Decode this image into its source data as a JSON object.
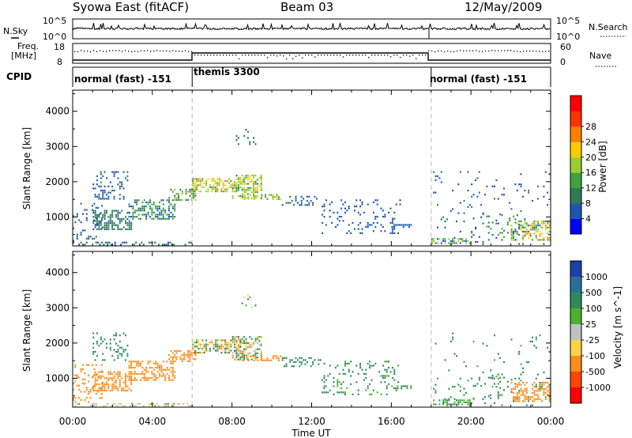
{
  "header": {
    "title": "Syowa East (fitACF)",
    "beam": "Beam 03",
    "date": "12/May/2009"
  },
  "noise_panel": {
    "left_label": "N.Sky",
    "left_ticks": [
      "10^5",
      "10^0"
    ],
    "right_label": "N.Search",
    "right_ticks": [
      "10^5",
      "10^0"
    ]
  },
  "freq_panel": {
    "left_label_1": "Freq.",
    "left_label_2": "[MHz]",
    "left_ticks": [
      "18",
      "8"
    ],
    "right_label": "Nave",
    "right_ticks": [
      "60",
      "0"
    ]
  },
  "cpid": {
    "label": "CPID",
    "modes": [
      {
        "name": "normal (fast) -151",
        "start_h": 0,
        "end_h": 6
      },
      {
        "name": "themis 3300",
        "start_h": 6,
        "end_h": 18
      },
      {
        "name": "normal (fast) -151",
        "start_h": 18,
        "end_h": 24
      }
    ]
  },
  "colors": {
    "power": [
      "#0000ff",
      "#1e56b4",
      "#2e7b55",
      "#3fa33f",
      "#9acd32",
      "#ffcc00",
      "#ff8000",
      "#ff3300",
      "#ff0000"
    ],
    "velocity": [
      "#ff0000",
      "#ff4500",
      "#ff8c1a",
      "#ffd24d",
      "#c0c0c0",
      "#4caf2c",
      "#2e8b57",
      "#2a6f9b",
      "#1f3fa8"
    ]
  },
  "chart_data": [
    {
      "type": "heatmap",
      "name": "power",
      "ylabel": "Slant Range [km]",
      "yticks": [
        "1000",
        "2000",
        "3000",
        "4000"
      ],
      "ylim": [
        180,
        4600
      ],
      "colorbar_label": "Power [dB]",
      "colorbar_ticks": [
        "4",
        "8",
        "12",
        "16",
        "20",
        "24",
        "28"
      ],
      "colorbar_range": [
        0,
        32
      ],
      "clusters": [
        {
          "t": [
            0.0,
            1.5
          ],
          "r": [
            300,
            1400
          ],
          "v": [
            4,
            10
          ],
          "density": 0.2
        },
        {
          "t": [
            1.0,
            3.0
          ],
          "r": [
            600,
            1200
          ],
          "v": [
            6,
            12
          ],
          "density": 0.5
        },
        {
          "t": [
            1.0,
            2.8
          ],
          "r": [
            1500,
            2300
          ],
          "v": [
            4,
            10
          ],
          "density": 0.25
        },
        {
          "t": [
            2.8,
            5.2
          ],
          "r": [
            900,
            1500
          ],
          "v": [
            6,
            16
          ],
          "density": 0.45
        },
        {
          "t": [
            4.8,
            6.2
          ],
          "r": [
            1450,
            1800
          ],
          "v": [
            8,
            20
          ],
          "density": 0.5
        },
        {
          "t": [
            6.0,
            8.5
          ],
          "r": [
            1700,
            2100
          ],
          "v": [
            14,
            26
          ],
          "density": 0.55
        },
        {
          "t": [
            8.0,
            9.5
          ],
          "r": [
            1500,
            2200
          ],
          "v": [
            10,
            24
          ],
          "density": 0.5
        },
        {
          "t": [
            8.5,
            10.5
          ],
          "r": [
            1450,
            1650
          ],
          "v": [
            12,
            22
          ],
          "density": 0.45
        },
        {
          "t": [
            10.5,
            12.5
          ],
          "r": [
            1300,
            1600
          ],
          "v": [
            4,
            10
          ],
          "density": 0.3
        },
        {
          "t": [
            12.5,
            16.5
          ],
          "r": [
            500,
            1500
          ],
          "v": [
            4,
            8
          ],
          "density": 0.15
        },
        {
          "t": [
            16.0,
            17.0
          ],
          "r": [
            700,
            800
          ],
          "v": [
            4,
            8
          ],
          "density": 0.6
        },
        {
          "t": [
            8.0,
            9.2
          ],
          "r": [
            2900,
            3500
          ],
          "v": [
            4,
            12
          ],
          "density": 0.1
        },
        {
          "t": [
            0.0,
            6.0
          ],
          "r": [
            200,
            300
          ],
          "v": [
            4,
            12
          ],
          "density": 0.3
        },
        {
          "t": [
            18.0,
            20.0
          ],
          "r": [
            200,
            400
          ],
          "v": [
            4,
            20
          ],
          "density": 0.55
        },
        {
          "t": [
            20.0,
            22.5
          ],
          "r": [
            400,
            1100
          ],
          "v": [
            4,
            16
          ],
          "density": 0.12
        },
        {
          "t": [
            22.0,
            24.0
          ],
          "r": [
            300,
            900
          ],
          "v": [
            8,
            28
          ],
          "density": 0.45
        },
        {
          "t": [
            18.0,
            24.0
          ],
          "r": [
            200,
            2300
          ],
          "v": [
            4,
            10
          ],
          "density": 0.04
        }
      ]
    },
    {
      "type": "heatmap",
      "name": "velocity",
      "ylabel": "Slant Range [km]",
      "yticks": [
        "1000",
        "2000",
        "3000",
        "4000"
      ],
      "ylim": [
        180,
        4600
      ],
      "colorbar_label": "Velocity [m s^-1]",
      "colorbar_ticks": [
        "1000",
        "500",
        "100",
        "25",
        "-25",
        "-100",
        "-500",
        "-1000"
      ],
      "xlabel": "Time UT",
      "xticks": [
        "00:00",
        "04:00",
        "08:00",
        "12:00",
        "16:00",
        "20:00",
        "00:00"
      ],
      "xlim": [
        0,
        24
      ],
      "clusters": [
        {
          "t": [
            0.0,
            1.5
          ],
          "r": [
            300,
            1400
          ],
          "v": [
            -500,
            -100
          ],
          "density": 0.2
        },
        {
          "t": [
            1.0,
            3.0
          ],
          "r": [
            600,
            1200
          ],
          "v": [
            -500,
            -100
          ],
          "density": 0.5
        },
        {
          "t": [
            1.0,
            2.8
          ],
          "r": [
            1500,
            2300
          ],
          "v": [
            100,
            500
          ],
          "density": 0.25
        },
        {
          "t": [
            2.8,
            5.2
          ],
          "r": [
            900,
            1500
          ],
          "v": [
            -500,
            -100
          ],
          "density": 0.5
        },
        {
          "t": [
            4.8,
            6.2
          ],
          "r": [
            1450,
            1800
          ],
          "v": [
            -500,
            -100
          ],
          "density": 0.5
        },
        {
          "t": [
            6.0,
            8.5
          ],
          "r": [
            1700,
            2100
          ],
          "v": [
            -300,
            300
          ],
          "density": 0.55
        },
        {
          "t": [
            8.0,
            9.5
          ],
          "r": [
            1500,
            2200
          ],
          "v": [
            -200,
            400
          ],
          "density": 0.5
        },
        {
          "t": [
            8.5,
            10.5
          ],
          "r": [
            1450,
            1650
          ],
          "v": [
            -400,
            -100
          ],
          "density": 0.45
        },
        {
          "t": [
            10.5,
            12.5
          ],
          "r": [
            1300,
            1600
          ],
          "v": [
            100,
            500
          ],
          "density": 0.3
        },
        {
          "t": [
            12.5,
            16.5
          ],
          "r": [
            500,
            1500
          ],
          "v": [
            50,
            300
          ],
          "density": 0.15
        },
        {
          "t": [
            16.0,
            17.0
          ],
          "r": [
            700,
            800
          ],
          "v": [
            50,
            200
          ],
          "density": 0.6
        },
        {
          "t": [
            8.0,
            9.2
          ],
          "r": [
            2900,
            3500
          ],
          "v": [
            -200,
            200
          ],
          "density": 0.1
        },
        {
          "t": [
            0.0,
            6.0
          ],
          "r": [
            200,
            300
          ],
          "v": [
            -50,
            50
          ],
          "density": 0.3
        },
        {
          "t": [
            18.0,
            20.0
          ],
          "r": [
            200,
            400
          ],
          "v": [
            40,
            150
          ],
          "density": 0.55
        },
        {
          "t": [
            20.0,
            22.5
          ],
          "r": [
            400,
            1100
          ],
          "v": [
            100,
            500
          ],
          "density": 0.12
        },
        {
          "t": [
            22.0,
            24.0
          ],
          "r": [
            300,
            900
          ],
          "v": [
            -500,
            -100
          ],
          "density": 0.45
        },
        {
          "t": [
            18.0,
            24.0
          ],
          "r": [
            200,
            2300
          ],
          "v": [
            50,
            300
          ],
          "density": 0.04
        }
      ]
    }
  ]
}
